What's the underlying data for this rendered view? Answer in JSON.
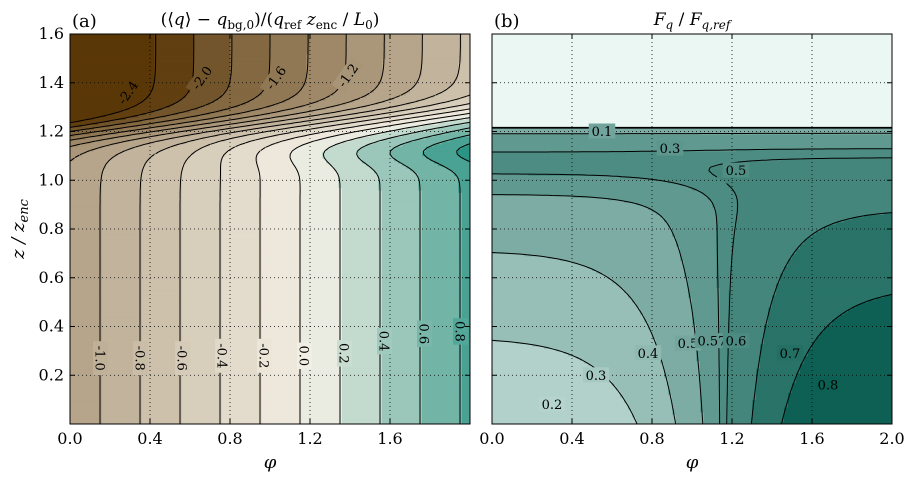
{
  "chart_data": [
    {
      "type": "contour",
      "panel": "(a)",
      "title": "(⟨q⟩ − q_bg,0)/(q_ref z_enc / L_0)",
      "title_parts": [
        "(⟨",
        "q",
        "⟩ − ",
        "q",
        "bg,0",
        ")/(",
        "q",
        "ref",
        " z",
        "enc",
        " / ",
        "L",
        "0",
        ")"
      ],
      "xlabel": "φ",
      "ylabel_parts": [
        "z",
        " / ",
        "z",
        "enc"
      ],
      "xlim": [
        0.0,
        2.0
      ],
      "ylim": [
        0.0,
        1.6
      ],
      "xticks": [
        "0.0",
        "0.4",
        "0.8",
        "1.2",
        "1.6"
      ],
      "yticks": [
        "0.2",
        "0.4",
        "0.6",
        "0.8",
        "1.0",
        "1.2",
        "1.4",
        "1.6"
      ],
      "grid": true,
      "negative_contours_dashed": true,
      "levels": [
        -2.4,
        -2.2,
        -2.0,
        -1.8,
        -1.6,
        -1.4,
        -1.2,
        -1.0,
        -0.8,
        -0.6,
        -0.4,
        -0.2,
        0.0,
        0.2,
        0.4,
        0.6,
        0.8,
        1.0
      ],
      "contour_labels_low": [
        {
          "text": "-1.0",
          "x": 0.15,
          "y": 0.27
        },
        {
          "text": "-0.8",
          "x": 0.35,
          "y": 0.27
        },
        {
          "text": "-0.6",
          "x": 0.56,
          "y": 0.27
        },
        {
          "text": "-0.4",
          "x": 0.76,
          "y": 0.28
        },
        {
          "text": "-0.2",
          "x": 0.97,
          "y": 0.28
        },
        {
          "text": "0.0",
          "x": 1.17,
          "y": 0.28
        },
        {
          "text": "0.2",
          "x": 1.37,
          "y": 0.29
        },
        {
          "text": "0.4",
          "x": 1.57,
          "y": 0.34
        },
        {
          "text": "0.6",
          "x": 1.77,
          "y": 0.37
        },
        {
          "text": "0.8",
          "x": 1.95,
          "y": 0.38
        }
      ],
      "contour_labels_high": [
        {
          "text": "-2.4",
          "x": 0.29,
          "y": 1.36
        },
        {
          "text": "-2.0",
          "x": 0.66,
          "y": 1.42
        },
        {
          "text": "-1.6",
          "x": 1.03,
          "y": 1.42
        },
        {
          "text": "-1.2",
          "x": 1.39,
          "y": 1.43
        }
      ],
      "colors": {
        "low": "#5a3707",
        "mid": "#f5f1e6",
        "high": "#2b9484"
      }
    },
    {
      "type": "contour",
      "panel": "(b)",
      "title": "F_q / F_q,ref",
      "title_parts": [
        "F",
        "q",
        " / ",
        "F",
        "q,ref"
      ],
      "xlabel": "φ",
      "xlim": [
        0.0,
        2.0
      ],
      "ylim": [
        0.0,
        1.6
      ],
      "xticks": [
        "0.0",
        "0.4",
        "0.8",
        "1.2",
        "1.6",
        "2.0"
      ],
      "grid": true,
      "levels": [
        0.1,
        0.2,
        0.3,
        0.4,
        0.5,
        0.57,
        0.6,
        0.7,
        0.8
      ],
      "contour_labels": [
        {
          "text": "0.1",
          "x": 0.55,
          "y": 1.2
        },
        {
          "text": "0.3",
          "x": 0.89,
          "y": 1.13
        },
        {
          "text": "0.5",
          "x": 1.22,
          "y": 1.04
        },
        {
          "text": "0.2",
          "x": 0.3,
          "y": 0.08
        },
        {
          "text": "0.3",
          "x": 0.52,
          "y": 0.2
        },
        {
          "text": "0.4",
          "x": 0.78,
          "y": 0.29
        },
        {
          "text": "0.5",
          "x": 0.98,
          "y": 0.33
        },
        {
          "text": "0.57",
          "x": 1.1,
          "y": 0.34
        },
        {
          "text": "0.6",
          "x": 1.22,
          "y": 0.34
        },
        {
          "text": "0.7",
          "x": 1.49,
          "y": 0.29
        },
        {
          "text": "0.8",
          "x": 1.68,
          "y": 0.16
        }
      ],
      "colors": {
        "low": "#ffffff",
        "high": "#00574a"
      }
    }
  ]
}
